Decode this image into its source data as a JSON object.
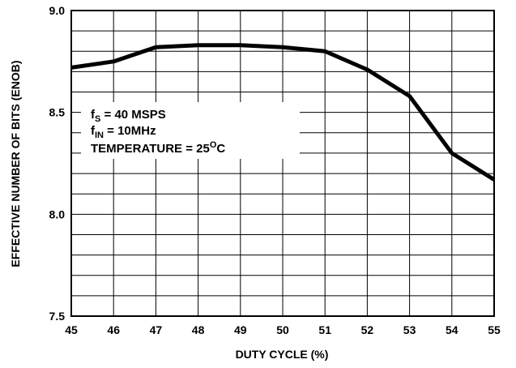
{
  "chart_data": {
    "type": "line",
    "xlabel": "DUTY CYCLE (%)",
    "ylabel": "EFFECTIVE NUMBER OF BITS (ENOB)",
    "x": [
      45,
      46,
      47,
      48,
      49,
      50,
      51,
      52,
      53,
      54,
      55
    ],
    "series": [
      {
        "color": "#000000",
        "values": [
          8.72,
          8.75,
          8.82,
          8.83,
          8.83,
          8.82,
          8.8,
          8.71,
          8.58,
          8.3,
          8.17
        ]
      }
    ],
    "xlim": [
      45,
      55
    ],
    "xticks": [
      45,
      46,
      47,
      48,
      49,
      50,
      51,
      52,
      53,
      54,
      55
    ],
    "ylim": [
      7.5,
      9.0
    ],
    "yticks": [
      {
        "value": 7.5,
        "label": "7.5"
      },
      {
        "value": 8.0,
        "label": "8.0"
      },
      {
        "value": 8.5,
        "label": "8.5"
      },
      {
        "value": 9.0,
        "label": "9.0"
      }
    ],
    "ygrid": [
      7.6,
      7.7,
      7.8,
      7.9,
      8.1,
      8.2,
      8.3,
      8.4,
      8.6,
      8.7,
      8.8,
      8.9
    ],
    "grid": true,
    "annotation": {
      "line1": {
        "base": "f",
        "sub": "S",
        "rest": " = 40 MSPS"
      },
      "line2": {
        "base": "f",
        "sub": "IN",
        "rest": " = 10MHz"
      },
      "line3": {
        "base": "TEMPERATURE = 25",
        "sup": "O",
        "rest": "C"
      }
    }
  }
}
